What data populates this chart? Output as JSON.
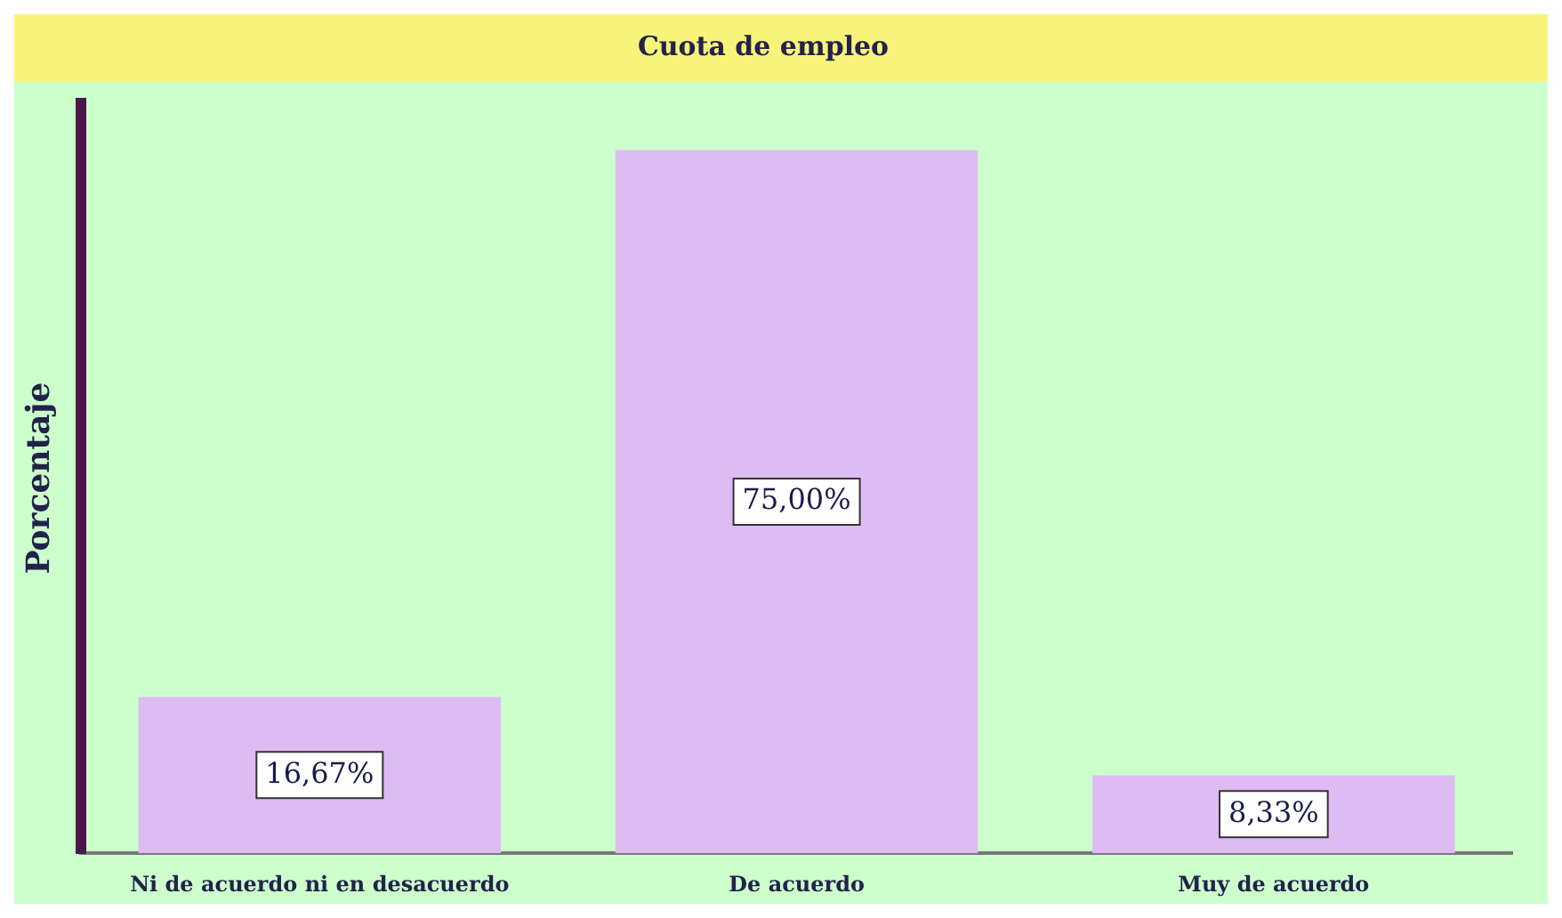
{
  "chart_data": {
    "type": "bar",
    "title": "Cuota de empleo",
    "ylabel": "Porcentaje",
    "categories": [
      "Ni de acuerdo ni en desacuerdo",
      "De acuerdo",
      "Muy de acuerdo"
    ],
    "values": [
      16.67,
      75,
      8.33
    ],
    "value_labels": [
      "16,67%",
      "75,00%",
      "8,33%"
    ],
    "color": "#dfbbf3",
    "grid": false,
    "legend": false
  }
}
